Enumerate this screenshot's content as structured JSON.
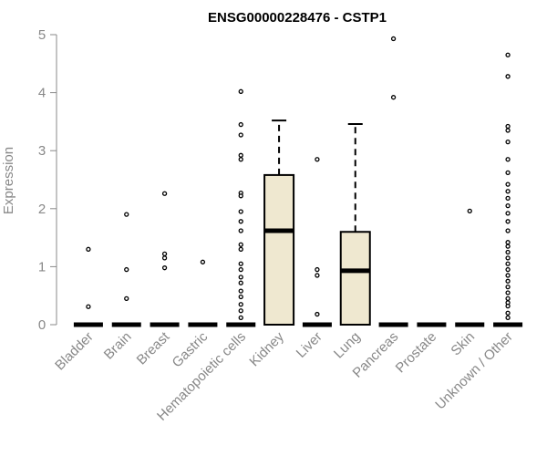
{
  "chart_data": {
    "type": "boxplot",
    "title": "ENSG00000228476 - CSTP1",
    "xlabel": "",
    "ylabel": "Expression",
    "ylim": [
      0,
      5
    ],
    "yticks": [
      0,
      1,
      2,
      3,
      4,
      5
    ],
    "grid": false,
    "legend": "none",
    "colors": {
      "box_fill": "#efe8d0",
      "box_stroke": "#000000",
      "axis": "#888888",
      "text": "#000000",
      "label_text": "#888888"
    },
    "categories": [
      "Bladder",
      "Brain",
      "Breast",
      "Gastric",
      "Hematopoietic cells",
      "Kidney",
      "Liver",
      "Lung",
      "Pancreas",
      "Prostate",
      "Skin",
      "Unknown / Other"
    ],
    "boxes": [
      {
        "category": "Bladder",
        "q1": 0,
        "median": 0,
        "q3": 0,
        "whisker_low": 0,
        "whisker_high": 0,
        "outliers": [
          1.3,
          0.31
        ]
      },
      {
        "category": "Brain",
        "q1": 0,
        "median": 0,
        "q3": 0,
        "whisker_low": 0,
        "whisker_high": 0,
        "outliers": [
          1.9,
          0.95,
          0.45
        ]
      },
      {
        "category": "Breast",
        "q1": 0,
        "median": 0,
        "q3": 0,
        "whisker_low": 0,
        "whisker_high": 0,
        "outliers": [
          2.26,
          1.22,
          1.15,
          0.98
        ]
      },
      {
        "category": "Gastric",
        "q1": 0,
        "median": 0,
        "q3": 0,
        "whisker_low": 0,
        "whisker_high": 0,
        "outliers": [
          1.08
        ]
      },
      {
        "category": "Hematopoietic cells",
        "q1": 0,
        "median": 0,
        "q3": 0,
        "whisker_low": 0,
        "whisker_high": 0,
        "outliers": [
          4.02,
          3.45,
          3.27,
          2.92,
          2.85,
          2.27,
          2.22,
          1.95,
          1.78,
          1.62,
          1.38,
          1.3,
          1.05,
          0.95,
          0.82,
          0.72,
          0.58,
          0.48,
          0.35,
          0.24,
          0.12
        ]
      },
      {
        "category": "Kidney",
        "q1": 0,
        "median": 1.62,
        "q3": 2.58,
        "whisker_low": 0,
        "whisker_high": 3.52,
        "outliers": []
      },
      {
        "category": "Liver",
        "q1": 0,
        "median": 0,
        "q3": 0,
        "whisker_low": 0,
        "whisker_high": 0,
        "outliers": [
          2.85,
          0.95,
          0.85,
          0.18
        ]
      },
      {
        "category": "Lung",
        "q1": 0,
        "median": 0.93,
        "q3": 1.6,
        "whisker_low": 0,
        "whisker_high": 3.46,
        "outliers": []
      },
      {
        "category": "Pancreas",
        "q1": 0,
        "median": 0,
        "q3": 0,
        "whisker_low": 0,
        "whisker_high": 0,
        "outliers": [
          4.93,
          3.92
        ]
      },
      {
        "category": "Prostate",
        "q1": 0,
        "median": 0,
        "q3": 0,
        "whisker_low": 0,
        "whisker_high": 0,
        "outliers": []
      },
      {
        "category": "Skin",
        "q1": 0,
        "median": 0,
        "q3": 0,
        "whisker_low": 0,
        "whisker_high": 0,
        "outliers": [
          1.96
        ]
      },
      {
        "category": "Unknown / Other",
        "q1": 0,
        "median": 0,
        "q3": 0,
        "whisker_low": 0,
        "whisker_high": 0,
        "outliers": [
          4.65,
          4.28,
          3.42,
          3.35,
          3.15,
          2.85,
          2.62,
          2.42,
          2.3,
          2.18,
          2.05,
          1.92,
          1.78,
          1.62,
          1.42,
          1.35,
          1.25,
          1.15,
          1.05,
          0.95,
          0.85,
          0.75,
          0.65,
          0.55,
          0.45,
          0.38,
          0.32,
          0.2,
          0.12
        ]
      }
    ]
  }
}
